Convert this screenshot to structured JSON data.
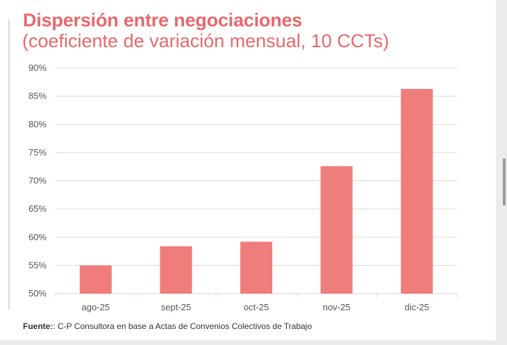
{
  "chart_data": {
    "type": "bar",
    "title": "Dispersión entre negociaciones",
    "subtitle": "(coeficiente de variación mensual, 10 CCTs)",
    "categories": [
      "ago-25",
      "sept-25",
      "oct-25",
      "nov-25",
      "dic-25"
    ],
    "values": [
      0.55,
      0.584,
      0.592,
      0.726,
      0.863
    ],
    "ylim": [
      0.5,
      0.9
    ],
    "yticks": [
      "90%",
      "85%",
      "80%",
      "75%",
      "70%",
      "65%",
      "60%",
      "55%",
      "50%"
    ],
    "xlabel": "",
    "ylabel": "",
    "grid": true,
    "bar_color": "#ef7d7c",
    "grid_color": "#d9d9d9"
  },
  "source": {
    "label": "Fuente:",
    "text": ": C-P Consultora en base a Actas de Convenios Colectivos de Trabajo"
  },
  "colors": {
    "accent": "#e8686c"
  }
}
